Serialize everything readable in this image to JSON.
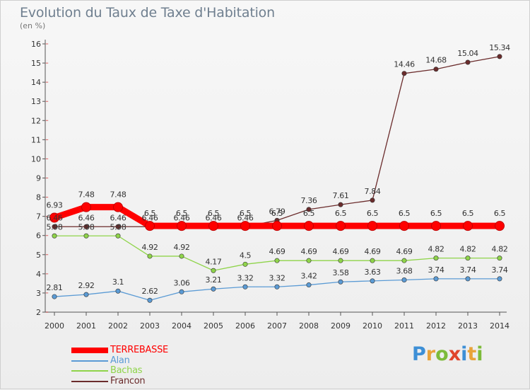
{
  "title": "Evolution du Taux de Taxe d'Habitation",
  "subtitle": "(en %)",
  "brand": {
    "letters": [
      "P",
      "r",
      "o",
      "x",
      "i",
      "t",
      "i"
    ],
    "colors": [
      "#3d8fd6",
      "#e8a33a",
      "#7dbb3a",
      "#e0452c",
      "#3d8fd6",
      "#e8a33a",
      "#7dbb3a"
    ]
  },
  "chart_data": {
    "type": "line",
    "x": [
      "2000",
      "2001",
      "2002",
      "2003",
      "2004",
      "2005",
      "2006",
      "2007",
      "2008",
      "2009",
      "2010",
      "2011",
      "2012",
      "2013",
      "2014"
    ],
    "ylim": [
      2,
      16
    ],
    "yticks": [
      "2",
      "3",
      "4",
      "5",
      "6",
      "7",
      "8",
      "9",
      "10",
      "11",
      "12",
      "13",
      "14",
      "15",
      "16"
    ],
    "grid": false,
    "legend_position": "bottom-left",
    "series": [
      {
        "name": "TERREBASSE",
        "color": "#ff0000",
        "values": [
          6.93,
          7.48,
          7.48,
          6.5,
          6.5,
          6.5,
          6.5,
          6.5,
          6.5,
          6.5,
          6.5,
          6.5,
          6.5,
          6.5,
          6.5
        ],
        "labels": [
          "6.93",
          "7.48",
          "7.48",
          "6.5",
          "6.5",
          "6.5",
          "6.5",
          "6.5",
          "6.5",
          "6.5",
          "6.5",
          "6.5",
          "6.5",
          "6.5",
          "6.5"
        ]
      },
      {
        "name": "Alan",
        "color": "#5b9bd5",
        "values": [
          2.81,
          2.92,
          3.1,
          2.62,
          3.06,
          3.21,
          3.32,
          3.32,
          3.42,
          3.58,
          3.63,
          3.68,
          3.74,
          3.74,
          3.74
        ],
        "labels": [
          "2.81",
          "2.92",
          "3.1",
          "2.62",
          "3.06",
          "3.21",
          "3.32",
          "3.32",
          "3.42",
          "3.58",
          "3.63",
          "3.68",
          "3.74",
          "3.74",
          "3.74"
        ]
      },
      {
        "name": "Bachas",
        "color": "#8fd44a",
        "values": [
          5.98,
          5.98,
          5.98,
          4.92,
          4.92,
          4.17,
          4.5,
          4.69,
          4.69,
          4.69,
          4.69,
          4.69,
          4.82,
          4.82,
          4.82
        ],
        "labels": [
          "5.98",
          "5.98",
          "5.98",
          "4.92",
          "4.92",
          "4.17",
          "4.5",
          "4.69",
          "4.69",
          "4.69",
          "4.69",
          "4.69",
          "4.82",
          "4.82",
          "4.82"
        ]
      },
      {
        "name": "Francon",
        "color": "#6b2c2c",
        "values": [
          6.46,
          6.46,
          6.46,
          6.46,
          6.46,
          6.46,
          6.46,
          6.79,
          7.36,
          7.61,
          7.84,
          14.46,
          14.68,
          15.04,
          15.34
        ],
        "labels": [
          "6.46",
          "6.46",
          "6.46",
          "6.46",
          "6.46",
          "6.46",
          "6.46",
          "6.79",
          "7.36",
          "7.61",
          "7.84",
          "14.46",
          "14.68",
          "15.04",
          "15.34"
        ]
      }
    ]
  }
}
